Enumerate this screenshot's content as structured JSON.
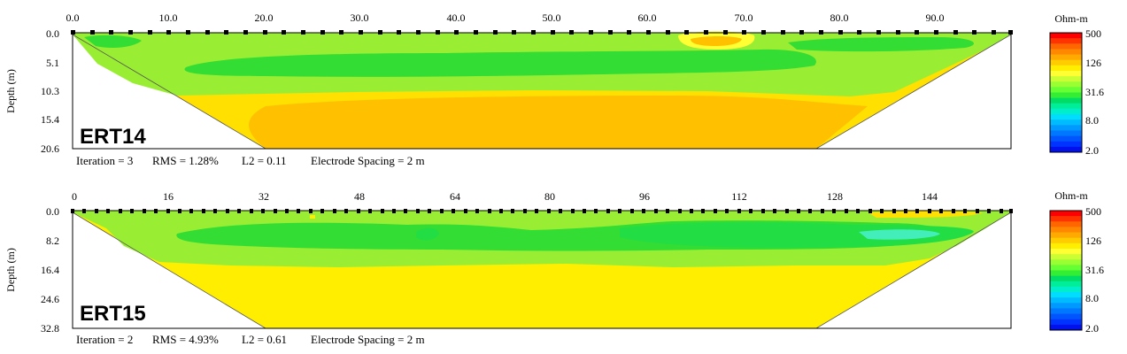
{
  "panels": [
    {
      "label": "ERT14",
      "ylabel": "Depth (m)",
      "x_ticks": [
        "0.0",
        "10.0",
        "20.0",
        "30.0",
        "40.0",
        "50.0",
        "60.0",
        "70.0",
        "80.0",
        "90.0"
      ],
      "y_ticks": [
        "0.0",
        "5.1",
        "10.3",
        "15.4",
        "20.6"
      ],
      "footer": [
        "Iteration = 3",
        "RMS = 1.28%",
        "L2 = 0.11",
        "Electrode Spacing = 2 m"
      ]
    },
    {
      "label": "ERT15",
      "ylabel": "Depth (m)",
      "x_ticks": [
        "0",
        "16",
        "32",
        "48",
        "64",
        "80",
        "96",
        "112",
        "128",
        "144"
      ],
      "y_ticks": [
        "0.0",
        "8.2",
        "16.4",
        "24.6",
        "32.8"
      ],
      "footer": [
        "Iteration = 2",
        "RMS = 4.93%",
        "L2 = 0.61",
        "Electrode Spacing = 2 m"
      ]
    }
  ],
  "colorbar": {
    "title": "Ohm-m",
    "labels": [
      "500",
      "126",
      "31.6",
      "8.0",
      "2.0"
    ],
    "colors": [
      "#ff0000",
      "#ff3300",
      "#ff6600",
      "#ff8800",
      "#ffaa00",
      "#ffcc00",
      "#ffee00",
      "#ffff33",
      "#ccff33",
      "#99ff33",
      "#66ff33",
      "#33ee33",
      "#00dd66",
      "#00ee99",
      "#00eecc",
      "#00ddff",
      "#00bbff",
      "#0099ff",
      "#0077ff",
      "#0055ff",
      "#0033ff",
      "#0011ee"
    ]
  },
  "chart_data": [
    {
      "type": "heatmap",
      "title": "ERT14",
      "ylabel": "Depth (m)",
      "x_range": [
        0,
        98
      ],
      "y_range": [
        0,
        20.6
      ],
      "x_ticks": [
        0,
        10,
        20,
        30,
        40,
        50,
        60,
        70,
        80,
        90
      ],
      "y_ticks": [
        0,
        5.1,
        10.3,
        15.4,
        20.6
      ],
      "electrode_spacing_m": 2,
      "iteration": 3,
      "rms_percent": 1.28,
      "l2": 0.11
    },
    {
      "type": "heatmap",
      "title": "ERT15",
      "ylabel": "Depth (m)",
      "x_range": [
        0,
        158
      ],
      "y_range": [
        0,
        32.8
      ],
      "x_ticks": [
        0,
        16,
        32,
        48,
        64,
        80,
        96,
        112,
        128,
        144
      ],
      "y_ticks": [
        0,
        8.2,
        16.4,
        24.6,
        32.8
      ],
      "electrode_spacing_m": 2,
      "iteration": 2,
      "rms_percent": 4.93,
      "l2": 0.61
    }
  ]
}
